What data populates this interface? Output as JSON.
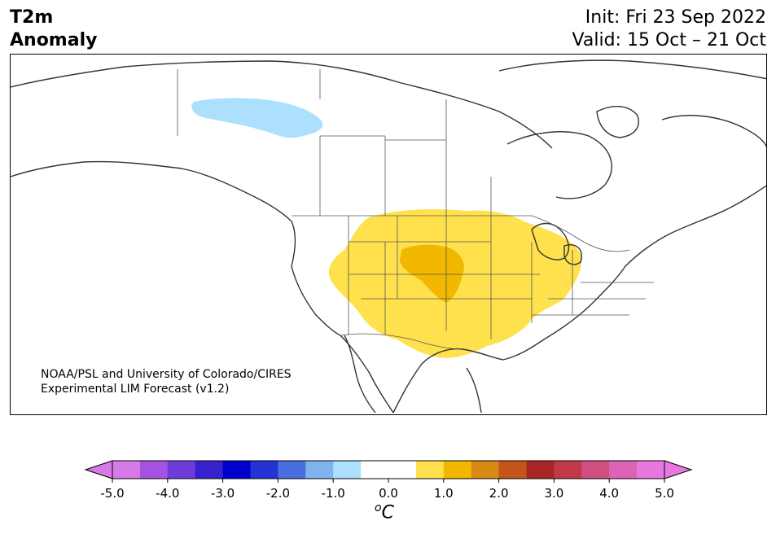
{
  "header": {
    "title_line1": "T2m",
    "title_line2": "Anomaly",
    "init": "Init: Fri 23 Sep 2022",
    "valid": "Valid: 15 Oct – 21 Oct"
  },
  "map": {
    "region": "North America",
    "credit_line1": "NOAA/PSL and University of Colorado/CIRES",
    "credit_line2": "Experimental LIM Forecast (v1.2)",
    "anomalies": [
      {
        "area": "Central/Western US",
        "level": "0.5 to 1.0",
        "color": "#ffe14d"
      },
      {
        "area": "Nebraska/Colorado",
        "level": "1.0 to 1.5",
        "color": "#f2b800"
      },
      {
        "area": "Northern Canada",
        "level": "-1.0 to -0.5",
        "color": "#addfff"
      }
    ]
  },
  "colorbar": {
    "unit_symbol": "o",
    "unit_letter": "C",
    "tick_labels": [
      "-5.0",
      "-4.0",
      "-3.0",
      "-2.0",
      "-1.0",
      "0.0",
      "1.0",
      "2.0",
      "3.0",
      "4.0",
      "5.0"
    ],
    "colors": [
      "#d67ae8",
      "#a353e0",
      "#6c3bd9",
      "#3522cc",
      "#0000cc",
      "#2433d6",
      "#4a6ee0",
      "#7eb3ee",
      "#addfff",
      "#ffffff",
      "#ffffff",
      "#ffe14d",
      "#f2b800",
      "#d98a12",
      "#c4561a",
      "#aa2525",
      "#c23a4a",
      "#cf5080",
      "#dc63b6",
      "#e878dd"
    ],
    "under_color": "#d67ae8",
    "over_color": "#e878dd"
  }
}
